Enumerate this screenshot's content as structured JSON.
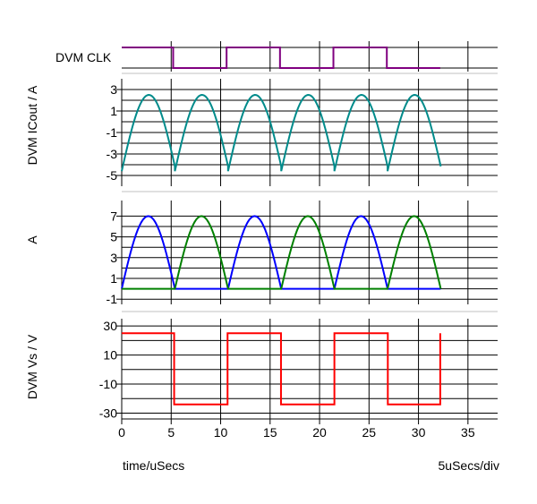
{
  "chart_data": {
    "type": "line",
    "title": "",
    "xlabel": "time/uSecs",
    "x_scale_label": "5uSecs/div",
    "x_ticks": [
      "0",
      "5",
      "10",
      "15",
      "20",
      "25",
      "30",
      "35"
    ],
    "xlim": [
      0,
      38
    ],
    "panels": [
      {
        "ylabel": "DVM CLK",
        "type": "digital",
        "colors": {
          "line": "#800080"
        },
        "series": [
          {
            "name": "",
            "x": [
              0,
              5.2,
              5.2,
              10.6,
              10.6,
              16,
              16,
              21.4,
              21.4,
              26.8,
              26.8,
              32.2
            ],
            "y": [
              1,
              1,
              0,
              0,
              1,
              1,
              0,
              0,
              1,
              1,
              0,
              0
            ]
          }
        ]
      },
      {
        "ylabel": "DVM ICout / A",
        "ylim": [
          -6,
          4
        ],
        "y_ticks": [
          "3",
          "1",
          "-1",
          "-3",
          "-5"
        ],
        "y_tick_values": [
          3,
          1,
          -1,
          -3,
          -5
        ],
        "colors": {
          "line": "#008b8b"
        },
        "series": [
          {
            "name": "",
            "shape": "sine_cycles",
            "period": 5.375,
            "start": 0,
            "end": 32.25,
            "low": -4.6,
            "peak": 2.5
          }
        ]
      },
      {
        "ylabel": "A",
        "ylim": [
          -1.5,
          8.5
        ],
        "y_ticks": [
          "7",
          "5",
          "3",
          "1",
          "-1"
        ],
        "y_tick_values": [
          7,
          5,
          3,
          1,
          -1
        ],
        "colors": {
          "blue": "#0000ff",
          "green": "#008000"
        },
        "series": [
          {
            "name": "",
            "color": "blue",
            "shape": "half_sine_alternating",
            "period": 5.375,
            "start": 0,
            "end": 32.25,
            "peak": 7,
            "active_cycles": [
              0,
              2,
              4
            ]
          },
          {
            "name": "",
            "color": "green",
            "shape": "half_sine_alternating",
            "period": 5.375,
            "start": 0,
            "end": 32.25,
            "peak": 7,
            "active_cycles": [
              1,
              3,
              5
            ]
          }
        ]
      },
      {
        "ylabel": "DVM Vs / V",
        "ylim": [
          -34,
          35
        ],
        "y_ticks": [
          "30",
          "10",
          "-10",
          "-30"
        ],
        "y_tick_values": [
          30,
          10,
          -10,
          -30
        ],
        "colors": {
          "line": "#ff0000"
        },
        "series": [
          {
            "name": "",
            "x": [
              0,
              5.3,
              5.3,
              10.7,
              10.7,
              16.1,
              16.1,
              21.5,
              21.5,
              26.9,
              26.9,
              32.2,
              32.2
            ],
            "y": [
              25,
              25,
              -24,
              -24,
              25,
              25,
              -24,
              -24,
              25,
              25,
              -24,
              -24,
              25
            ]
          }
        ]
      }
    ]
  }
}
